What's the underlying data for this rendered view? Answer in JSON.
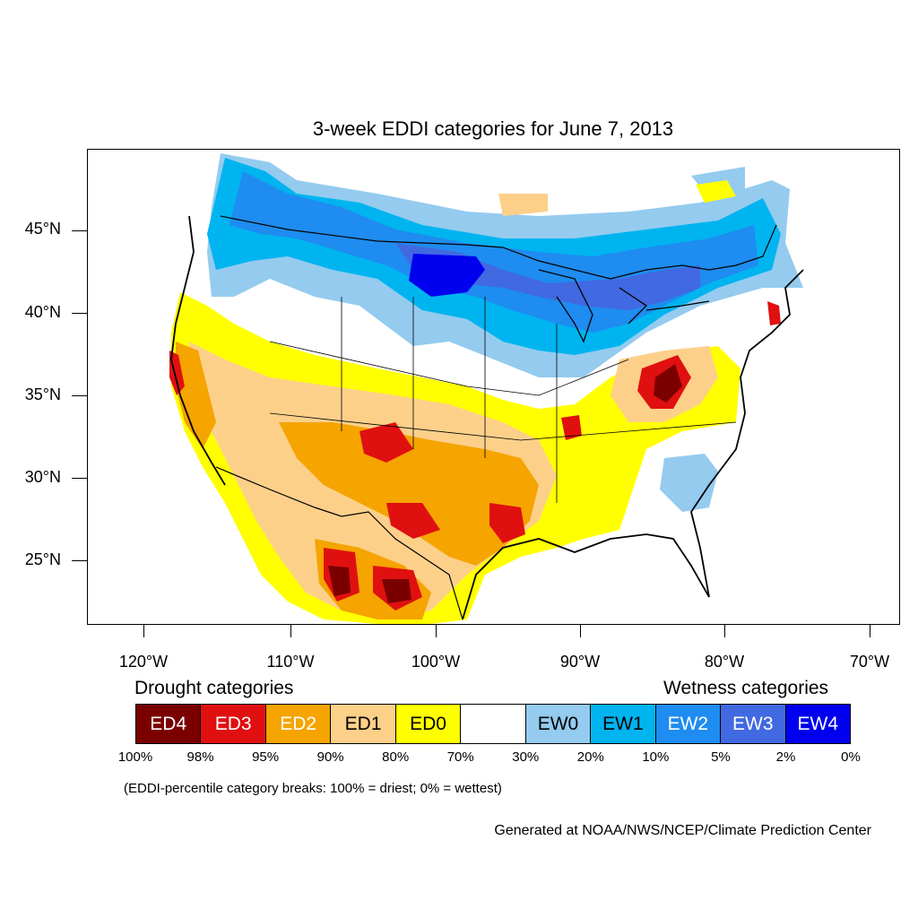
{
  "title": "3-week EDDI categories for June 7, 2013",
  "map": {
    "lat_ticks": [
      "45°N",
      "40°N",
      "35°N",
      "30°N",
      "25°N"
    ],
    "lon_ticks": [
      "120°W",
      "110°W",
      "100°W",
      "90°W",
      "80°W",
      "70°W"
    ],
    "colors": {
      "ED4": "#7a0000",
      "ED3": "#e01010",
      "ED2": "#f5a400",
      "ED1": "#fdd08a",
      "ED0": "#ffff00",
      "neutral": "#ffffff",
      "EW0": "#94cbef",
      "EW1": "#00b4f0",
      "EW2": "#1e8cf0",
      "EW3": "#4169e1",
      "EW4": "#0000ee"
    }
  },
  "legend": {
    "drought_heading": "Drought categories",
    "wetness_heading": "Wetness categories",
    "categories": [
      {
        "label": "ED4",
        "color": "#7a0000",
        "text_color": "#ffffff"
      },
      {
        "label": "ED3",
        "color": "#e01010",
        "text_color": "#ffffff"
      },
      {
        "label": "ED2",
        "color": "#f5a400",
        "text_color": "#ffffff"
      },
      {
        "label": "ED1",
        "color": "#fdd08a",
        "text_color": "#000000"
      },
      {
        "label": "ED0",
        "color": "#ffff00",
        "text_color": "#000000"
      },
      {
        "label": "",
        "color": "#ffffff",
        "text_color": "#000000"
      },
      {
        "label": "EW0",
        "color": "#94cbef",
        "text_color": "#000000"
      },
      {
        "label": "EW1",
        "color": "#00b4f0",
        "text_color": "#000000"
      },
      {
        "label": "EW2",
        "color": "#1e8cf0",
        "text_color": "#ffffff"
      },
      {
        "label": "EW3",
        "color": "#4169e1",
        "text_color": "#ffffff"
      },
      {
        "label": "EW4",
        "color": "#0000ee",
        "text_color": "#ffffff"
      }
    ],
    "breaks": [
      "100%",
      "98%",
      "95%",
      "90%",
      "80%",
      "70%",
      "30%",
      "20%",
      "10%",
      "5%",
      "2%",
      "0%"
    ]
  },
  "note": "(EDDI-percentile category breaks: 100% = driest; 0% = wettest)",
  "credit": "Generated at NOAA/NWS/NCEP/Climate Prediction Center"
}
